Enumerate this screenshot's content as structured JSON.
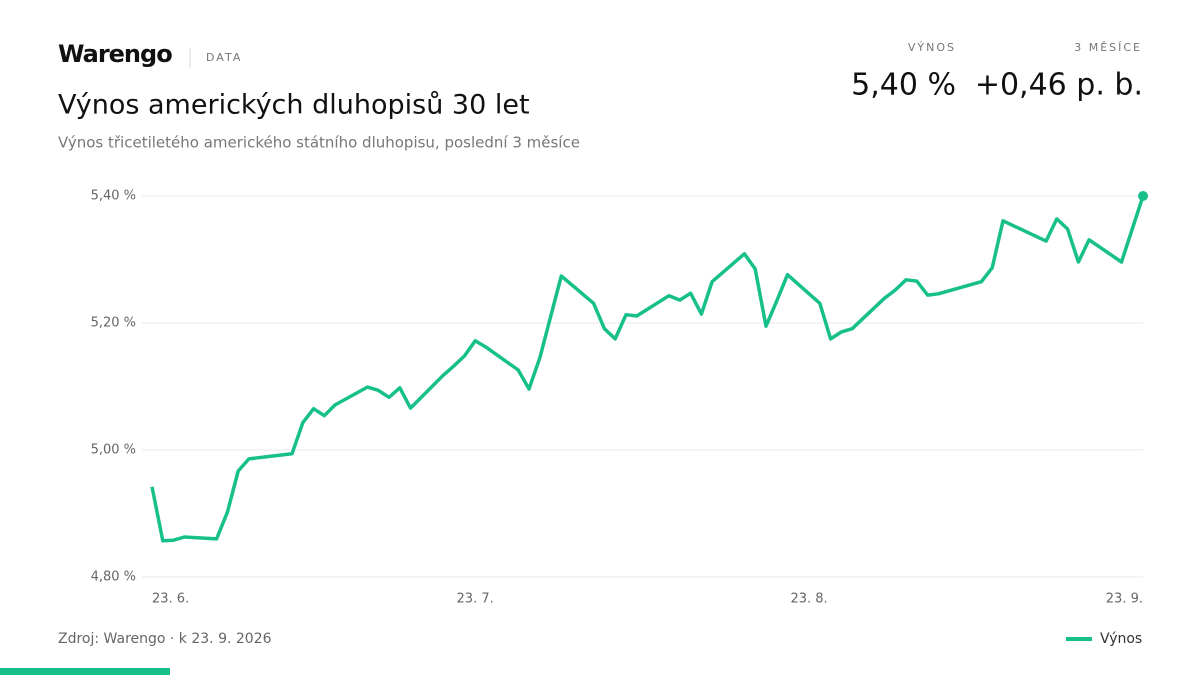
{
  "brand": "Warengo",
  "brand_tag": "DATA",
  "stats": [
    {
      "label": "VÝNOS",
      "value": "5,40 %"
    },
    {
      "label": "3 MĚSÍCE",
      "value": "+0,46 p. b."
    }
  ],
  "footer": "Zdroj: Warengo · k 23. 9. 2026",
  "chart_data": {
    "type": "line",
    "title": "Výnos amerických dluhopisů 30 let",
    "subtitle": "Výnos třicetiletého amerického státního dluhopisu, poslední 3 měsíce",
    "x": [
      "06-23",
      "06-24",
      "06-25",
      "06-26",
      "06-29",
      "06-30",
      "07-01",
      "07-02",
      "07-06",
      "07-07",
      "07-08",
      "07-09",
      "07-10",
      "07-13",
      "07-14",
      "07-15",
      "07-16",
      "07-17",
      "07-20",
      "07-21",
      "07-22",
      "07-23",
      "07-24",
      "07-27",
      "07-28",
      "07-29",
      "07-31",
      "08-03",
      "08-04",
      "08-05",
      "08-06",
      "08-07",
      "08-10",
      "08-11",
      "08-12",
      "08-13",
      "08-14",
      "08-17",
      "08-18",
      "08-19",
      "08-20",
      "08-21",
      "08-24",
      "08-25",
      "08-26",
      "08-27",
      "08-30",
      "08-31",
      "09-01",
      "09-02",
      "09-03",
      "09-04",
      "09-08",
      "09-09",
      "09-10",
      "09-14",
      "09-15",
      "09-16",
      "09-17",
      "09-18",
      "09-21",
      "09-23"
    ],
    "series": [
      {
        "name": "Výnos",
        "color": "#17c08a",
        "values": [
          4.942,
          4.857,
          4.858,
          4.863,
          4.86,
          4.902,
          4.967,
          4.986,
          4.994,
          5.043,
          5.065,
          5.054,
          5.071,
          5.099,
          5.094,
          5.083,
          5.098,
          5.066,
          5.117,
          5.132,
          5.148,
          5.172,
          5.162,
          5.126,
          5.096,
          5.145,
          5.274,
          5.231,
          5.191,
          5.175,
          5.213,
          5.211,
          5.243,
          5.236,
          5.247,
          5.214,
          5.265,
          5.309,
          5.285,
          5.195,
          5.235,
          5.276,
          5.231,
          5.175,
          5.186,
          5.191,
          5.239,
          5.252,
          5.268,
          5.266,
          5.244,
          5.246,
          5.265,
          5.287,
          5.361,
          5.329,
          5.364,
          5.348,
          5.296,
          5.331,
          5.296,
          5.4
        ]
      }
    ],
    "xlim": [
      "06-23",
      "09-23"
    ],
    "xticks": [
      {
        "value": "06-23",
        "label": "23. 6."
      },
      {
        "value": "07-23",
        "label": "23. 7."
      },
      {
        "value": "08-23",
        "label": "23. 8."
      },
      {
        "value": "09-23",
        "label": "23. 9."
      }
    ],
    "ylim": [
      4.8,
      5.4
    ],
    "yticks": [
      {
        "value": 4.8,
        "label": "4,80 %"
      },
      {
        "value": 5.0,
        "label": "5,00 %"
      },
      {
        "value": 5.2,
        "label": "5,20 %"
      },
      {
        "value": 5.4,
        "label": "5,40 %"
      }
    ],
    "grid": true
  }
}
